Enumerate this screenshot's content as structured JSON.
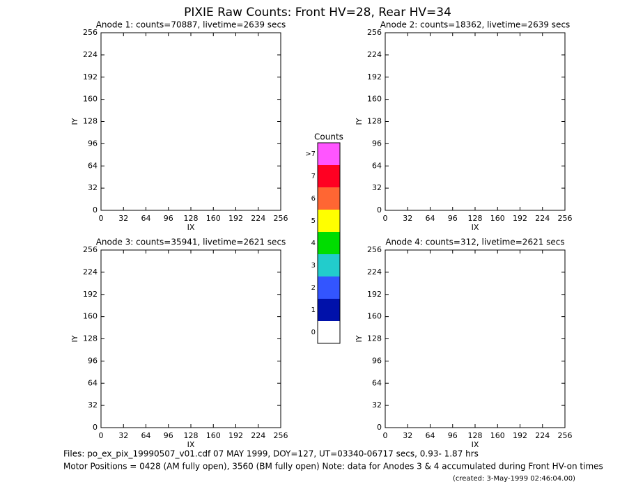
{
  "title": "PIXIE Raw Counts:  Front HV=28, Rear HV=34",
  "chart_data": [
    {
      "type": "image",
      "title": "Anode 1: counts=70887, livetime=2639 secs",
      "x_label": "IX",
      "y_label": "IY",
      "xlim": [
        0,
        256
      ],
      "ylim": [
        0,
        256
      ],
      "xticks": [
        0,
        32,
        64,
        96,
        128,
        160,
        192,
        224,
        256
      ],
      "yticks": [
        0,
        32,
        64,
        96,
        128,
        160,
        192,
        224,
        256
      ]
    },
    {
      "type": "image",
      "title": "Anode 2: counts=18362, livetime=2639 secs",
      "x_label": "IX",
      "y_label": "IY",
      "xlim": [
        0,
        256
      ],
      "ylim": [
        0,
        256
      ],
      "xticks": [
        0,
        32,
        64,
        96,
        128,
        160,
        192,
        224,
        256
      ],
      "yticks": [
        0,
        32,
        64,
        96,
        128,
        160,
        192,
        224,
        256
      ]
    },
    {
      "type": "image",
      "title": "Anode 3: counts=35941, livetime=2621 secs",
      "x_label": "IX",
      "y_label": "IY",
      "xlim": [
        0,
        256
      ],
      "ylim": [
        0,
        256
      ],
      "xticks": [
        0,
        32,
        64,
        96,
        128,
        160,
        192,
        224,
        256
      ],
      "yticks": [
        0,
        32,
        64,
        96,
        128,
        160,
        192,
        224,
        256
      ]
    },
    {
      "type": "image",
      "title": "Anode 4: counts=312, livetime=2621 secs",
      "x_label": "IX",
      "y_label": "IY",
      "xlim": [
        0,
        256
      ],
      "ylim": [
        0,
        256
      ],
      "xticks": [
        0,
        32,
        64,
        96,
        128,
        160,
        192,
        224,
        256
      ],
      "yticks": [
        0,
        32,
        64,
        96,
        128,
        160,
        192,
        224,
        256
      ]
    }
  ],
  "colorbar": {
    "title": "Counts",
    "levels": [
      {
        "label": ">7",
        "color": "#ff55ff"
      },
      {
        "label": "7",
        "color": "#ff0022"
      },
      {
        "label": "6",
        "color": "#ff6633"
      },
      {
        "label": "5",
        "color": "#ffff00"
      },
      {
        "label": "4",
        "color": "#00dd00"
      },
      {
        "label": "3",
        "color": "#22cccc"
      },
      {
        "label": "2",
        "color": "#3355ff"
      },
      {
        "label": "1",
        "color": "#0011aa"
      },
      {
        "label": "0",
        "color": "#ffffff"
      }
    ]
  },
  "footer": {
    "files": "Files: po_ex_pix_19990507_v01.cdf    07 MAY 1999, DOY=127, UT=03340-06717 secs,  0.93- 1.87 hrs",
    "motor": "Motor Positions = 0428 (AM fully open), 3560 (BM fully open)    Note: data for Anodes 3 & 4 accumulated during Front HV-on times",
    "created": "(created:  3-May-1999 02:46:04.00)"
  }
}
